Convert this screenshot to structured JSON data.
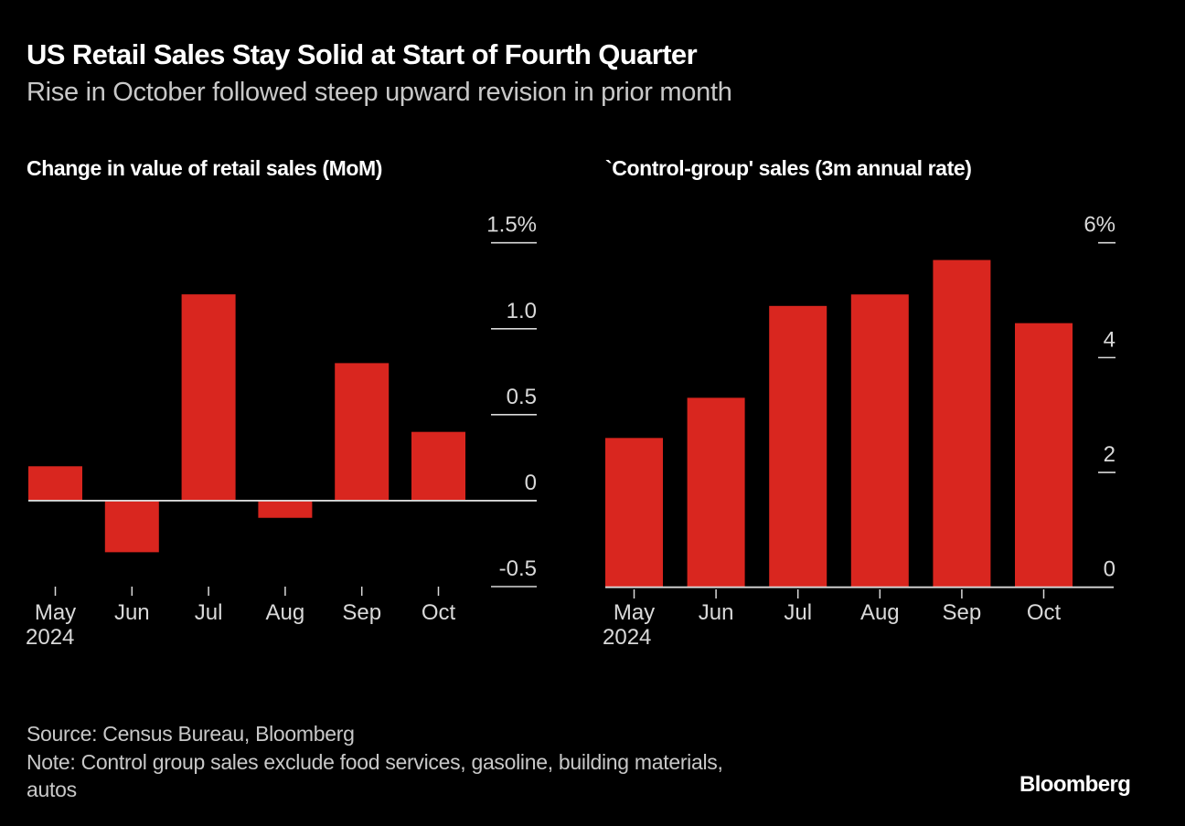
{
  "header": {
    "title": "US Retail Sales Stay Solid at Start of Fourth Quarter",
    "subtitle": "Rise in October followed steep upward revision in prior month"
  },
  "footer": {
    "source": "Source: Census Bureau, Bloomberg",
    "note_line1": "Note: Control group sales exclude food services, gasoline, building materials,",
    "note_line2": "autos",
    "brand": "Bloomberg"
  },
  "colors": {
    "bar": "#d9261f",
    "axis": "#d9d9d9",
    "background": "#000000"
  },
  "chart_data": [
    {
      "type": "bar",
      "title": "Change in value of retail sales (MoM)",
      "categories": [
        "May",
        "Jun",
        "Jul",
        "Aug",
        "Sep",
        "Oct"
      ],
      "year_label": "2024",
      "values": [
        0.2,
        -0.3,
        1.2,
        -0.1,
        0.8,
        0.4
      ],
      "unit": "%",
      "ylim": [
        -0.5,
        1.5
      ],
      "yticks": [
        -0.5,
        0,
        0.5,
        1.0,
        1.5
      ],
      "ytick_labels": [
        "-0.5",
        "0",
        "0.5",
        "1.0",
        "1.5%"
      ],
      "xlabel": "",
      "ylabel": "",
      "grid": false,
      "axis_side": "right"
    },
    {
      "type": "bar",
      "title": "`Control-group' sales (3m annual rate)",
      "categories": [
        "May",
        "Jun",
        "Jul",
        "Aug",
        "Sep",
        "Oct"
      ],
      "year_label": "2024",
      "values": [
        2.6,
        3.3,
        4.9,
        5.1,
        5.7,
        4.6
      ],
      "unit": "%",
      "ylim": [
        0,
        6
      ],
      "yticks": [
        0,
        2,
        4,
        6
      ],
      "ytick_labels": [
        "0",
        "2",
        "4",
        "6%"
      ],
      "xlabel": "",
      "ylabel": "",
      "grid": false,
      "axis_side": "right"
    }
  ]
}
